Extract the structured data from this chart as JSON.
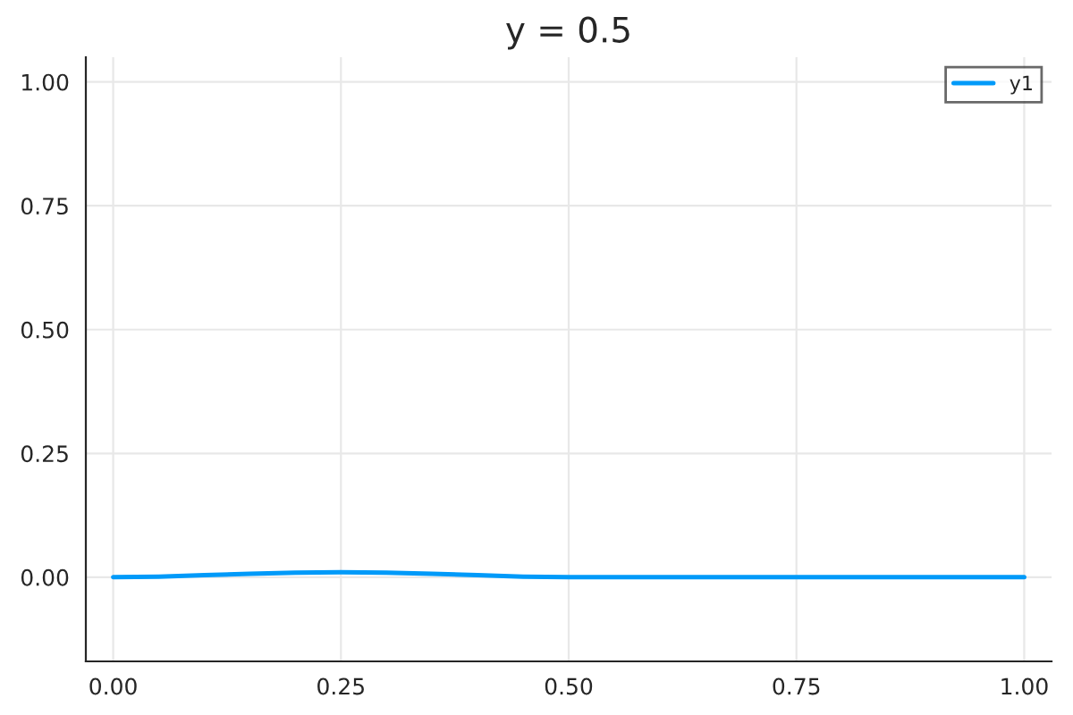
{
  "chart_data": {
    "type": "line",
    "title": "y = 0.5",
    "x": [
      0,
      0.05,
      0.1,
      0.15,
      0.2,
      0.25,
      0.3,
      0.35,
      0.4,
      0.45,
      0.5,
      0.75,
      1.0
    ],
    "series": [
      {
        "name": "y1",
        "color": "#009af9",
        "values": [
          0,
          0.001,
          0.004,
          0.007,
          0.009,
          0.01,
          0.009,
          0.007,
          0.004,
          0.001,
          0,
          0,
          0
        ]
      }
    ],
    "xlim": [
      -0.03,
      1.03
    ],
    "ylim": [
      -0.17,
      1.05
    ],
    "xticks": [
      {
        "value": 0,
        "label": "0.00"
      },
      0.25,
      {
        "value": 0.5,
        "label": "0.50"
      },
      0.75,
      {
        "value": 1,
        "label": "1.00"
      }
    ],
    "yticks": [
      {
        "value": 0,
        "label": "0.00"
      },
      0.25,
      {
        "value": 0.5,
        "label": "0.50"
      },
      0.75,
      {
        "value": 1,
        "label": "1.00"
      }
    ],
    "grid": true,
    "legend": "top right",
    "line_style": "solid",
    "marker": "none"
  }
}
